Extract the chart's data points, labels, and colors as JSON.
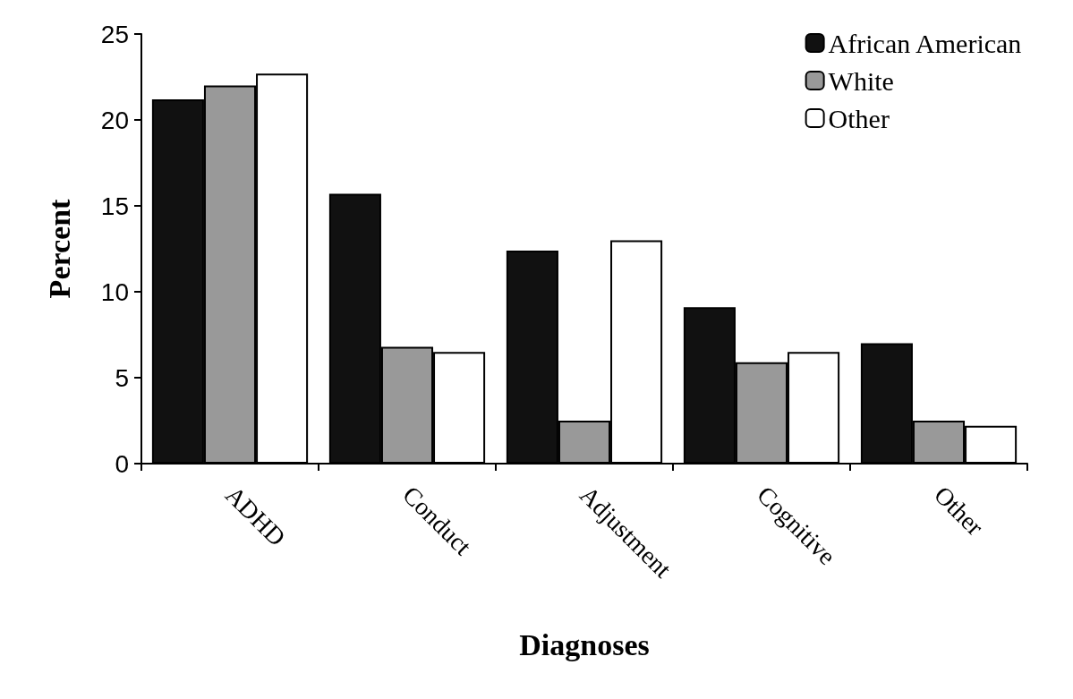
{
  "chart_data": {
    "type": "bar",
    "xlabel": "Diagnoses",
    "ylabel": "Percent",
    "categories": [
      "ADHD",
      "Conduct",
      "Adjustment",
      "Cognitive",
      "Other"
    ],
    "series": [
      {
        "name": "African American",
        "color": "#111111",
        "values": [
          21.2,
          15.7,
          12.4,
          9.1,
          7.0
        ]
      },
      {
        "name": "White",
        "color": "#999999",
        "values": [
          22.0,
          6.8,
          2.5,
          5.9,
          2.5
        ]
      },
      {
        "name": "Other",
        "color": "#ffffff",
        "values": [
          22.7,
          6.5,
          13.0,
          6.5,
          2.2
        ]
      }
    ],
    "ylim": [
      0,
      25
    ],
    "yticks": [
      0,
      5,
      10,
      15,
      20,
      25
    ],
    "grid": false,
    "legend": "top right"
  }
}
